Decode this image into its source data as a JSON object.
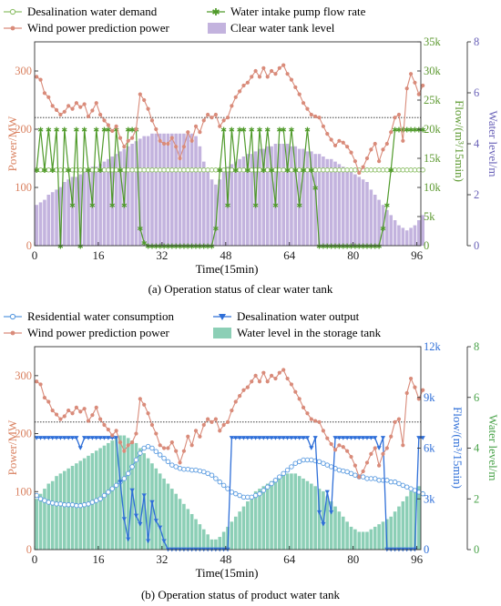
{
  "chart_data": [
    {
      "type": "line",
      "title": "(a) Operation status of clear water tank",
      "xlabel": "Time(15min)",
      "ylabel_left": "Power/MW",
      "ylabel_right1": "Flow/(m³/15min)",
      "ylabel_right2": "Water level/m",
      "x_ticks": [
        "0",
        "16",
        "32",
        "48",
        "64",
        "80",
        "96"
      ],
      "y_left_ticks": [
        "0",
        "100",
        "200",
        "300"
      ],
      "y_right1_ticks": [
        "0",
        "5k",
        "10k",
        "15k",
        "20k",
        "25k",
        "30k",
        "35k"
      ],
      "y_right2_ticks": [
        "0",
        "2",
        "4",
        "6",
        "8"
      ],
      "xlim": [
        0,
        97
      ],
      "y_left_lim": [
        0,
        350
      ],
      "y_right1_lim": [
        0,
        35000
      ],
      "y_right2_lim": [
        0,
        8
      ],
      "legend": [
        {
          "label": "Desalination water demand",
          "color": "#6aab3a",
          "marker": "open-circle"
        },
        {
          "label": "Water intake pump flow rate",
          "color": "#4f9a2a",
          "marker": "star"
        },
        {
          "label": "Wind power prediction power",
          "color": "#d98b7a",
          "marker": "dot"
        },
        {
          "label": "Clear water tank level",
          "color": "#c3b3de",
          "marker": "bar"
        }
      ],
      "colors": {
        "wind": "#d98b7a",
        "demand": "#8fc06a",
        "pump": "#4f9a2a",
        "level": "#c3b3de",
        "axis_left": "#d9805f",
        "axis_right1": "#5e9a32",
        "axis_right2": "#6a62b8"
      },
      "reference_line_power": 220,
      "series": [
        {
          "name": "Wind power prediction power",
          "axis": "left",
          "values": [
            290,
            285,
            262,
            255,
            240,
            233,
            225,
            230,
            240,
            235,
            245,
            238,
            243,
            222,
            232,
            245,
            225,
            215,
            207,
            197,
            205,
            185,
            170,
            180,
            185,
            200,
            260,
            250,
            235,
            215,
            200,
            180,
            175,
            175,
            185,
            170,
            150,
            170,
            195,
            180,
            205,
            195,
            215,
            225,
            220,
            225,
            205,
            215,
            220,
            240,
            255,
            265,
            275,
            280,
            290,
            300,
            290,
            305,
            290,
            300,
            295,
            305,
            310,
            295,
            285,
            272,
            260,
            245,
            235,
            225,
            222,
            220,
            205,
            192,
            182,
            172,
            180,
            177,
            170,
            160,
            145,
            125,
            135,
            150,
            165,
            175,
            145,
            165,
            175,
            195,
            220,
            225,
            180,
            270,
            295,
            280,
            260,
            275
          ]
        },
        {
          "name": "Desalination water demand",
          "axis": "right1",
          "values": [
            13000,
            13000,
            13000,
            13000,
            13000,
            13000,
            13000,
            13000,
            13000,
            13000,
            13000,
            13000,
            13000,
            13000,
            13000,
            13000,
            13000,
            13000,
            13000,
            13000,
            13000,
            13000,
            13000,
            13000,
            13000,
            13000,
            13000,
            13000,
            13000,
            13000,
            13000,
            13000,
            13000,
            13000,
            13000,
            13000,
            13000,
            13000,
            13000,
            13000,
            13000,
            13000,
            13000,
            13000,
            13000,
            13000,
            13000,
            13000,
            13000,
            13000,
            13000,
            13000,
            13000,
            13000,
            13000,
            13000,
            13000,
            13000,
            13000,
            13000,
            13000,
            13000,
            13000,
            13000,
            13000,
            13000,
            13000,
            13000,
            13000,
            13000,
            13000,
            13000,
            13000,
            13000,
            13000,
            13000,
            13000,
            13000,
            13000,
            13000,
            13000,
            13000,
            13000,
            13000,
            13000,
            13000,
            13000,
            13000,
            13000,
            13000,
            13000,
            13000,
            13000,
            13000,
            13000,
            13000,
            13000,
            13000
          ]
        },
        {
          "name": "Water intake pump flow rate",
          "axis": "right1",
          "values": [
            13000,
            20000,
            13000,
            20000,
            13000,
            20000,
            0,
            20000,
            13000,
            7000,
            20000,
            0,
            20000,
            13000,
            7000,
            20000,
            13000,
            20000,
            20000,
            7000,
            20000,
            13000,
            7000,
            20000,
            20000,
            20000,
            3000,
            500,
            0,
            0,
            0,
            0,
            0,
            0,
            0,
            0,
            0,
            0,
            0,
            0,
            0,
            0,
            0,
            0,
            0,
            3000,
            13000,
            20000,
            7000,
            20000,
            13000,
            20000,
            20000,
            13000,
            20000,
            7000,
            20000,
            13000,
            20000,
            13000,
            7000,
            20000,
            20000,
            13000,
            20000,
            13000,
            7000,
            13000,
            20000,
            13000,
            10000,
            0,
            0,
            0,
            0,
            0,
            0,
            0,
            0,
            0,
            0,
            0,
            0,
            0,
            0,
            0,
            0,
            3000,
            7000,
            13000,
            20000,
            20000,
            20000,
            20000,
            20000,
            20000,
            20000,
            20000
          ]
        },
        {
          "name": "Clear water tank level",
          "axis": "right2",
          "values": [
            1.6,
            1.7,
            1.8,
            2.0,
            2.1,
            2.2,
            2.3,
            2.5,
            2.6,
            2.7,
            2.7,
            2.8,
            2.9,
            3.0,
            3.1,
            3.1,
            3.2,
            3.3,
            3.4,
            3.5,
            3.6,
            3.7,
            3.8,
            3.9,
            4.0,
            4.1,
            4.2,
            4.3,
            4.3,
            4.4,
            4.4,
            4.4,
            4.4,
            4.4,
            4.4,
            4.4,
            4.4,
            4.4,
            4.4,
            4.4,
            4.3,
            3.9,
            3.3,
            3.0,
            2.6,
            2.4,
            2.6,
            2.9,
            3.1,
            3.2,
            3.3,
            3.4,
            3.5,
            3.6,
            3.6,
            3.7,
            3.8,
            3.8,
            3.9,
            3.9,
            4.0,
            4.0,
            4.0,
            4.0,
            3.9,
            3.9,
            3.8,
            3.8,
            3.7,
            3.7,
            3.6,
            3.6,
            3.5,
            3.4,
            3.4,
            3.3,
            3.2,
            3.1,
            3.0,
            2.9,
            2.8,
            2.7,
            2.6,
            2.5,
            2.2,
            2.0,
            1.8,
            1.6,
            1.4,
            1.2,
            1.0,
            0.8,
            0.7,
            0.6,
            0.7,
            0.8,
            1.0,
            1.2
          ]
        }
      ]
    },
    {
      "type": "line",
      "title": "(b) Operation status of product water tank",
      "xlabel": "Time(15min)",
      "ylabel_left": "Power/MW",
      "ylabel_right1": "Flow/(m³/15min)",
      "ylabel_right2": "Water level/m",
      "x_ticks": [
        "0",
        "16",
        "32",
        "48",
        "64",
        "80",
        "96"
      ],
      "y_left_ticks": [
        "0",
        "100",
        "200",
        "300"
      ],
      "y_right1_ticks": [
        "0",
        "3k",
        "6k",
        "9k",
        "12k"
      ],
      "y_right2_ticks": [
        "0",
        "2",
        "4",
        "6",
        "8"
      ],
      "xlim": [
        0,
        97
      ],
      "y_left_lim": [
        0,
        350
      ],
      "y_right1_lim": [
        0,
        12000
      ],
      "y_right2_lim": [
        0,
        8
      ],
      "legend": [
        {
          "label": "Residential water consumption",
          "color": "#4b8fd6",
          "marker": "open-circle"
        },
        {
          "label": "Desalination water output",
          "color": "#2f6fd8",
          "marker": "triangle"
        },
        {
          "label": "Wind power prediction power",
          "color": "#d98b7a",
          "marker": "dot"
        },
        {
          "label": "Water level in the storage tank",
          "color": "#8ccfb6",
          "marker": "bar"
        }
      ],
      "colors": {
        "wind": "#d98b7a",
        "residential": "#5a9be0",
        "output": "#2f6fd8",
        "level": "#8ccfb6",
        "axis_left": "#d9805f",
        "axis_right1": "#2f6fd8",
        "axis_right2": "#4aa34a"
      },
      "reference_line_power": 220,
      "series": [
        {
          "name": "Wind power prediction power",
          "axis": "left",
          "values": [
            290,
            285,
            262,
            255,
            240,
            233,
            225,
            230,
            240,
            235,
            245,
            238,
            243,
            222,
            232,
            245,
            225,
            215,
            207,
            197,
            205,
            185,
            170,
            180,
            185,
            200,
            260,
            250,
            235,
            215,
            200,
            180,
            175,
            175,
            185,
            170,
            150,
            170,
            195,
            180,
            205,
            195,
            215,
            225,
            220,
            225,
            205,
            215,
            220,
            240,
            255,
            265,
            275,
            280,
            290,
            300,
            290,
            305,
            290,
            300,
            295,
            305,
            310,
            295,
            285,
            272,
            260,
            245,
            235,
            225,
            222,
            220,
            205,
            192,
            182,
            172,
            180,
            177,
            170,
            160,
            145,
            125,
            135,
            150,
            165,
            175,
            145,
            165,
            175,
            195,
            220,
            225,
            180,
            270,
            295,
            280,
            260,
            275
          ]
        },
        {
          "name": "Residential water consumption",
          "axis": "right1",
          "values": [
            3200,
            3000,
            2900,
            2800,
            2750,
            2700,
            2700,
            2650,
            2650,
            2650,
            2600,
            2600,
            2650,
            2700,
            2800,
            2900,
            3000,
            3200,
            3400,
            3600,
            3800,
            4000,
            4200,
            4500,
            4900,
            5300,
            5700,
            6000,
            6100,
            6000,
            5800,
            5600,
            5400,
            5200,
            5000,
            4900,
            4800,
            4750,
            4750,
            4700,
            4700,
            4650,
            4600,
            4500,
            4400,
            4200,
            4000,
            3800,
            3600,
            3400,
            3300,
            3200,
            3100,
            3100,
            3100,
            3200,
            3300,
            3500,
            3700,
            3900,
            4100,
            4300,
            4500,
            4700,
            4900,
            5100,
            5200,
            5300,
            5300,
            5300,
            5250,
            5200,
            5100,
            5000,
            4900,
            4800,
            4700,
            4650,
            4600,
            4500,
            4400,
            4300,
            4300,
            4200,
            4200,
            4200,
            4100,
            4100,
            4100,
            4000,
            4000,
            3900,
            3800,
            3700,
            3600,
            3500,
            3400,
            3300
          ]
        },
        {
          "name": "Desalination water output",
          "axis": "right1",
          "values": [
            6600,
            6600,
            6600,
            6600,
            6600,
            6600,
            6600,
            6600,
            6600,
            6600,
            6600,
            6000,
            6600,
            6600,
            6600,
            6600,
            6600,
            6600,
            6600,
            6600,
            6600,
            4000,
            1800,
            600,
            3500,
            2000,
            1500,
            3200,
            500,
            2800,
            1700,
            1300,
            500,
            0,
            0,
            0,
            0,
            0,
            0,
            0,
            0,
            0,
            0,
            0,
            0,
            0,
            0,
            0,
            0,
            6600,
            6600,
            6600,
            6600,
            6600,
            6600,
            6600,
            6600,
            6600,
            6600,
            6600,
            6600,
            6600,
            6600,
            6600,
            6600,
            6600,
            6600,
            6600,
            6600,
            6000,
            6600,
            2200,
            1500,
            3400,
            2200,
            6600,
            6600,
            6600,
            6600,
            6600,
            6600,
            6600,
            6600,
            6600,
            6600,
            6600,
            6000,
            6600,
            0,
            0,
            0,
            0,
            0,
            0,
            0,
            0,
            6600,
            6600
          ]
        },
        {
          "name": "Water level in the storage tank",
          "axis": "right2",
          "values": [
            2.0,
            2.2,
            2.4,
            2.6,
            2.7,
            2.9,
            3.0,
            3.1,
            3.2,
            3.3,
            3.4,
            3.5,
            3.6,
            3.7,
            3.8,
            3.9,
            4.0,
            4.1,
            4.2,
            4.3,
            4.4,
            4.5,
            4.5,
            4.4,
            4.3,
            4.2,
            4.0,
            3.8,
            3.6,
            3.4,
            3.2,
            3.0,
            2.8,
            2.6,
            2.4,
            2.2,
            2.0,
            1.8,
            1.6,
            1.4,
            1.2,
            1.0,
            0.8,
            0.6,
            0.4,
            0.4,
            0.5,
            0.7,
            0.9,
            1.1,
            1.3,
            1.5,
            1.7,
            1.9,
            2.1,
            2.3,
            2.4,
            2.5,
            2.6,
            2.7,
            2.8,
            2.9,
            3.0,
            3.0,
            3.0,
            3.0,
            2.9,
            2.8,
            2.7,
            2.6,
            2.5,
            2.4,
            2.3,
            2.1,
            1.9,
            1.7,
            1.5,
            1.3,
            1.1,
            0.9,
            0.8,
            0.7,
            0.7,
            0.7,
            0.8,
            0.9,
            1.0,
            1.1,
            1.2,
            1.3,
            1.5,
            1.7,
            1.9,
            2.1,
            2.3,
            2.4,
            2.5
          ]
        }
      ]
    }
  ]
}
